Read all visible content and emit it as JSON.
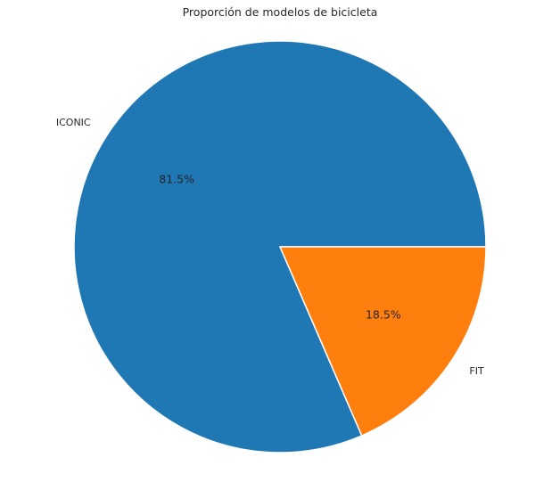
{
  "chart_data": {
    "type": "pie",
    "title": "Proporción de modelos de bicicleta",
    "slices": [
      {
        "label": "ICONIC",
        "value": 81.5,
        "pct_label": "81.5%",
        "color": "#1f77b4"
      },
      {
        "label": "FIT",
        "value": 18.5,
        "pct_label": "18.5%",
        "color": "#ff7f0e"
      }
    ],
    "start_angle_deg": 0,
    "direction": "counterclockwise",
    "edge_color": "#ffffff"
  }
}
